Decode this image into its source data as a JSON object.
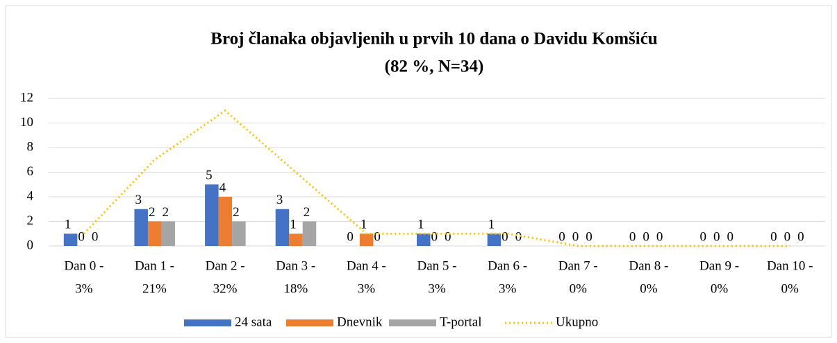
{
  "chart_data": {
    "type": "bar",
    "title": [
      "Broj članaka objavljenih u prvih 10 dana o Davidu Komšiću",
      "(82 %, N=34)"
    ],
    "categories": [
      [
        "Dan 0 -",
        "3%"
      ],
      [
        "Dan 1 -",
        "21%"
      ],
      [
        "Dan 2 -",
        "32%"
      ],
      [
        "Dan 3 -",
        "18%"
      ],
      [
        "Dan 4 -",
        "3%"
      ],
      [
        "Dan 5 -",
        "3%"
      ],
      [
        "Dan 6 -",
        "3%"
      ],
      [
        "Dan 7 -",
        "0%"
      ],
      [
        "Dan 8 -",
        "0%"
      ],
      [
        "Dan 9 -",
        "0%"
      ],
      [
        "Dan 10 -",
        "0%"
      ]
    ],
    "series": [
      {
        "name": "24 sata",
        "color": "#4472c4",
        "values": [
          1,
          3,
          5,
          3,
          0,
          1,
          1,
          0,
          0,
          0,
          0
        ]
      },
      {
        "name": "Dnevnik",
        "color": "#ed7d31",
        "values": [
          0,
          2,
          4,
          1,
          1,
          0,
          0,
          0,
          0,
          0,
          0
        ]
      },
      {
        "name": "T-portal",
        "color": "#a5a5a5",
        "values": [
          0,
          2,
          2,
          2,
          0,
          0,
          0,
          0,
          0,
          0,
          0
        ]
      },
      {
        "name": "Ukupno",
        "color": "#ffc000",
        "type": "line",
        "values": [
          1,
          7,
          11,
          6,
          1,
          1,
          1,
          0,
          0,
          0,
          0
        ]
      }
    ],
    "ylim": [
      0,
      12
    ],
    "yticks": [
      0,
      2,
      4,
      6,
      8,
      10,
      12
    ],
    "grid": true,
    "legend": "bottom"
  }
}
